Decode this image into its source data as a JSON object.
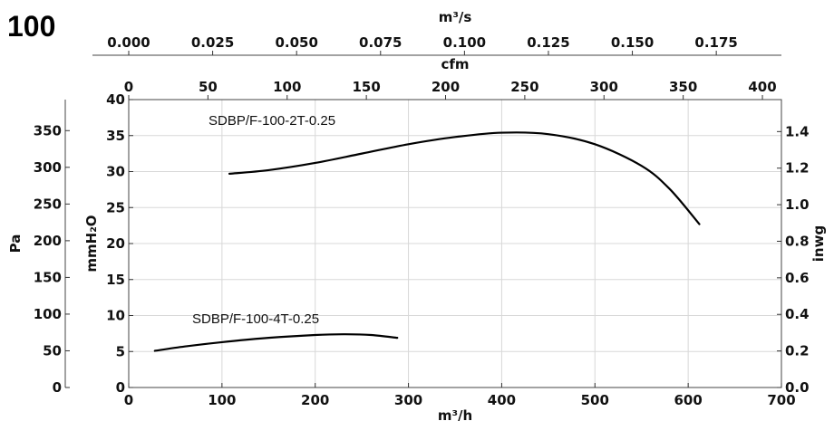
{
  "heading": "100",
  "chart_data": {
    "type": "line",
    "xlabel": "m³/h",
    "x_range": [
      0,
      700
    ],
    "x_ticks": [
      0,
      100,
      200,
      300,
      400,
      500,
      600,
      700
    ],
    "top_axes": [
      {
        "label": "cfm",
        "range": [
          0,
          412
        ],
        "ticks": [
          "0",
          "50",
          "100",
          "150",
          "200",
          "250",
          "300",
          "350",
          "400"
        ],
        "tick_values": [
          0,
          50,
          100,
          150,
          200,
          250,
          300,
          350,
          400
        ]
      },
      {
        "label": "m³/s",
        "range": [
          0,
          0.1944
        ],
        "ticks": [
          "0.000",
          "0.025",
          "0.050",
          "0.075",
          "0.100",
          "0.125",
          "0.150",
          "0.175"
        ],
        "tick_values": [
          0,
          0.025,
          0.05,
          0.075,
          0.1,
          0.125,
          0.15,
          0.175
        ]
      }
    ],
    "y_axes": [
      {
        "label": "Pa",
        "side": "left-outer",
        "range": [
          0,
          392.3
        ],
        "ticks": [
          0,
          50,
          100,
          150,
          200,
          250,
          300,
          350
        ]
      },
      {
        "label": "mmH₂O",
        "side": "left",
        "range": [
          0,
          40
        ],
        "ticks": [
          0,
          5,
          10,
          15,
          20,
          25,
          30,
          35,
          40
        ]
      },
      {
        "label": "inwg",
        "side": "right",
        "range": [
          0,
          1.575
        ],
        "ticks": [
          "0.0",
          "0.2",
          "0.4",
          "0.6",
          "0.8",
          "1.0",
          "1.2",
          "1.4"
        ],
        "tick_values": [
          0,
          0.2,
          0.4,
          0.6,
          0.8,
          1.0,
          1.2,
          1.4
        ]
      }
    ],
    "grid": true,
    "series": [
      {
        "name": "SDBP/F-100-2T-0.25",
        "x": [
          108,
          150,
          200,
          250,
          300,
          350,
          400,
          450,
          500,
          550,
          580,
          612
        ],
        "y": [
          29.7,
          30.2,
          31.2,
          32.5,
          33.8,
          34.8,
          35.4,
          35.2,
          33.8,
          30.8,
          27.6,
          22.7
        ]
      },
      {
        "name": "SDBP/F-100-4T-0.25",
        "x": [
          28,
          60,
          100,
          150,
          200,
          230,
          260,
          288
        ],
        "y": [
          5.1,
          5.7,
          6.3,
          6.9,
          7.3,
          7.4,
          7.3,
          6.9
        ]
      }
    ],
    "line_color": "#000000",
    "grid_color": "#d8d8d8"
  }
}
